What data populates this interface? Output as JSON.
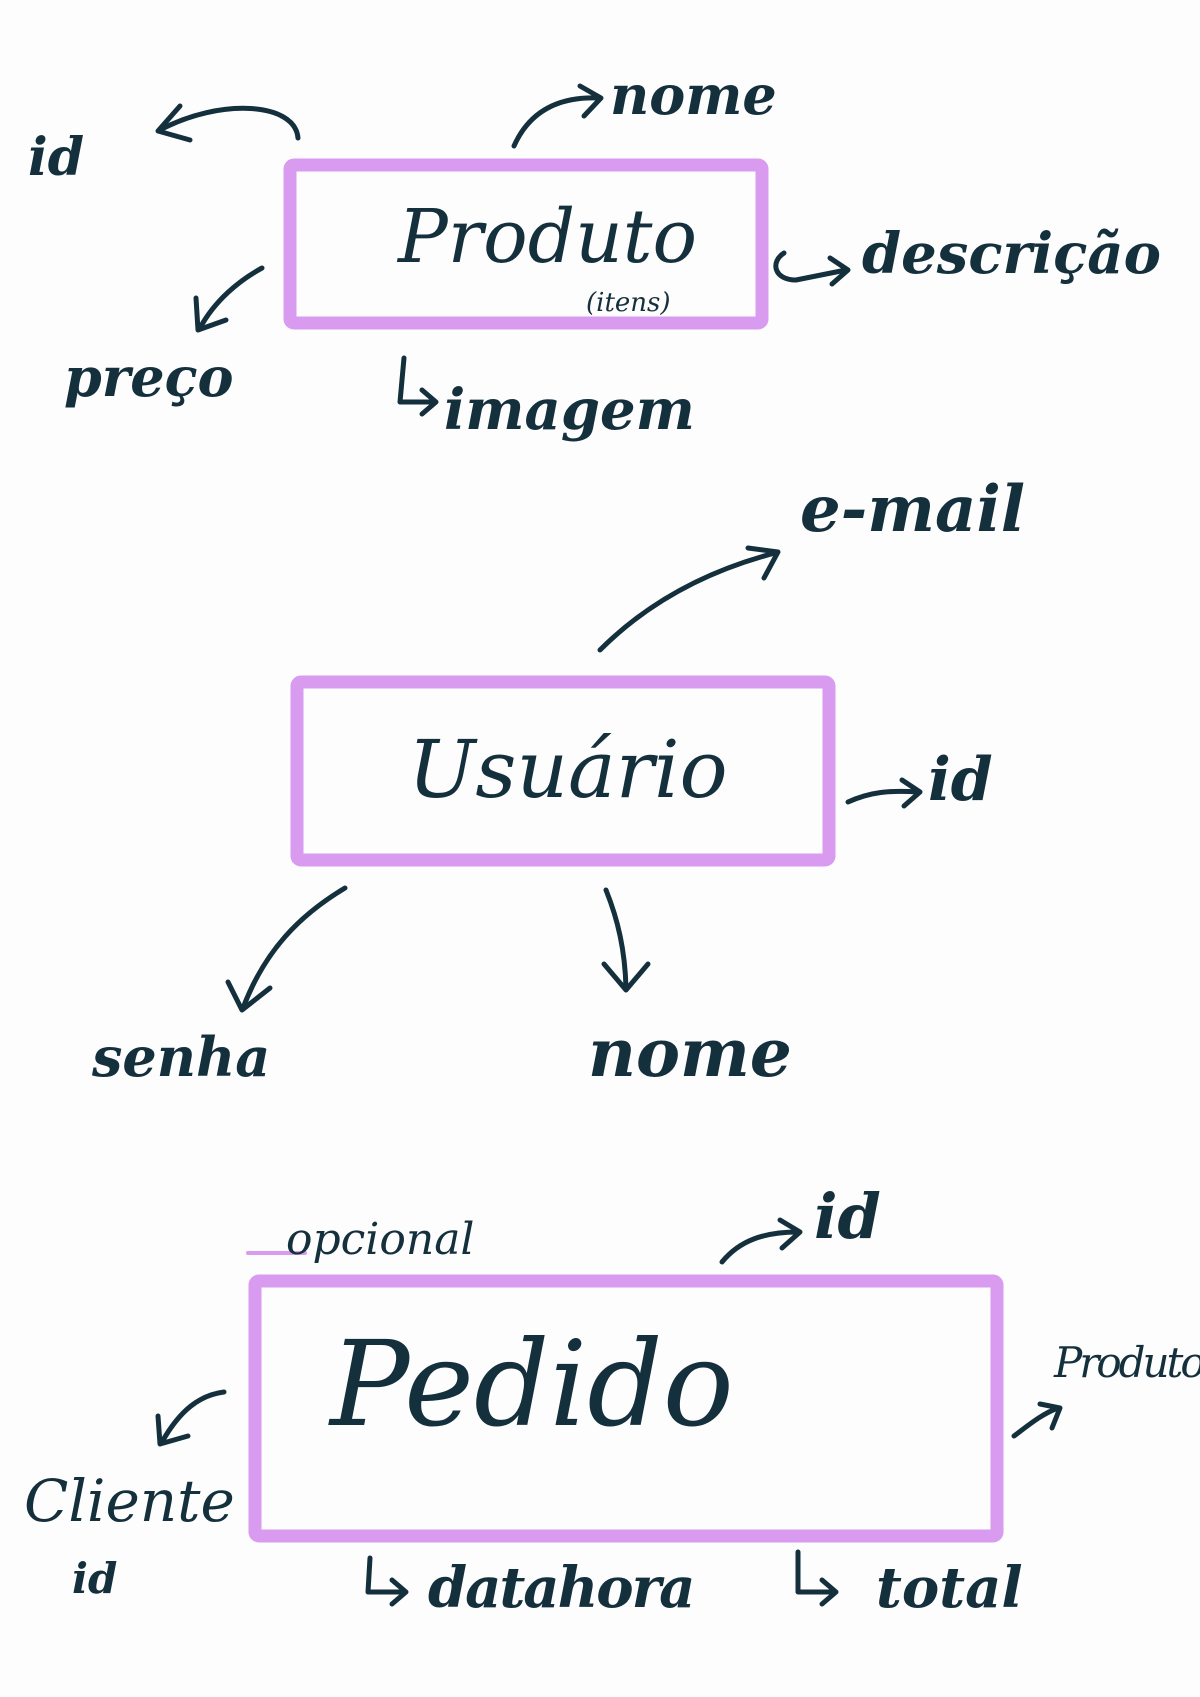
{
  "entities": {
    "produto": {
      "title": "Produto",
      "subtitle": "(itens)",
      "attributes": {
        "id": "id",
        "nome": "nome",
        "descricao": "descrição",
        "preco": "preço",
        "imagem": "imagem"
      }
    },
    "usuario": {
      "title": "Usuário",
      "attributes": {
        "email": "e-mail",
        "id": "id",
        "senha": "senha",
        "nome": "nome"
      }
    },
    "pedido": {
      "title": "Pedido",
      "note": "opcional",
      "attributes": {
        "id": "id",
        "produtos": "Produtos",
        "cliente": "Cliente",
        "cliente_id": "id",
        "datahora": "datahora",
        "total": "total"
      }
    }
  },
  "colors": {
    "ink": "#15303d",
    "box_stroke": "#d99bef",
    "background": "#fdfdfd"
  }
}
